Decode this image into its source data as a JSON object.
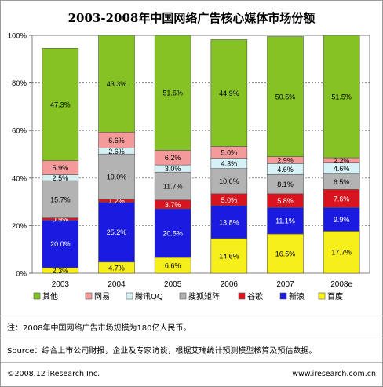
{
  "chart_data": {
    "type": "bar",
    "stacked": true,
    "title": "2003-2008年中国网络广告核心媒体市场份额",
    "categories": [
      "2003",
      "2004",
      "2005",
      "2006",
      "2007",
      "2008e"
    ],
    "series": [
      {
        "name": "百度",
        "color": "#f6ef1a",
        "values": [
          2.3,
          4.7,
          6.6,
          14.6,
          16.5,
          17.7
        ]
      },
      {
        "name": "新浪",
        "color": "#1a1ae0",
        "values": [
          20.0,
          25.2,
          20.5,
          13.8,
          11.1,
          9.9
        ]
      },
      {
        "name": "谷歌",
        "color": "#d8151e",
        "values": [
          0.9,
          1.2,
          3.7,
          5.0,
          5.8,
          7.6
        ]
      },
      {
        "name": "搜狐矩阵",
        "color": "#b3b3b3",
        "values": [
          15.7,
          19.0,
          11.7,
          10.6,
          8.1,
          6.5
        ]
      },
      {
        "name": "腾讯QQ",
        "color": "#d6f2f6",
        "values": [
          2.5,
          2.6,
          3.0,
          4.3,
          4.6,
          4.6
        ]
      },
      {
        "name": "网易",
        "color": "#f49a9a",
        "values": [
          5.9,
          6.6,
          6.2,
          5.0,
          2.9,
          2.2
        ]
      },
      {
        "name": "其他",
        "color": "#84c323",
        "values": [
          47.3,
          43.3,
          51.6,
          44.9,
          50.5,
          51.5
        ]
      }
    ],
    "value_labels": [
      [
        "2.3%",
        "4.7%",
        "6.6%",
        "14.6%",
        "16.5%",
        "17.7%"
      ],
      [
        "20.0%",
        "25.2%",
        "20.5%",
        "13.8%",
        "11.1%",
        "9.9%"
      ],
      [
        "0.9%",
        "1.2%",
        "3.7%",
        "5.0%",
        "5.8%",
        "7.6%"
      ],
      [
        "15.7%",
        "19.0%",
        "11.7%",
        "10.6%",
        "8.1%",
        "6.5%"
      ],
      [
        "2.5%",
        "2.6%",
        "3.0%",
        "4.3%",
        "4.6%",
        "4.6%"
      ],
      [
        "5.9%",
        "6.6%",
        "6.2%",
        "5.0%",
        "2.9%",
        "2.2%"
      ],
      [
        "47.3%",
        "43.3%",
        "51.6%",
        "44.9%",
        "50.5%",
        "51.5%"
      ]
    ],
    "legend_order": [
      "其他",
      "网易",
      "腾讯QQ",
      "搜狐矩阵",
      "谷歌",
      "新浪",
      "百度"
    ],
    "ylim": [
      0,
      100
    ],
    "yticks": [
      "0%",
      "20%",
      "40%",
      "60%",
      "80%",
      "100%"
    ],
    "grid": true,
    "legend_position": "bottom"
  },
  "note": "注：2008年中国网络广告市场规模为180亿人民币。",
  "source": "Source：综合上市公司财报，企业及专家访谈，根据艾瑞统计预测模型核算及预估数据。",
  "copyright": "©2008.12 iResearch Inc.",
  "website": "www.iresearch.com.cn"
}
